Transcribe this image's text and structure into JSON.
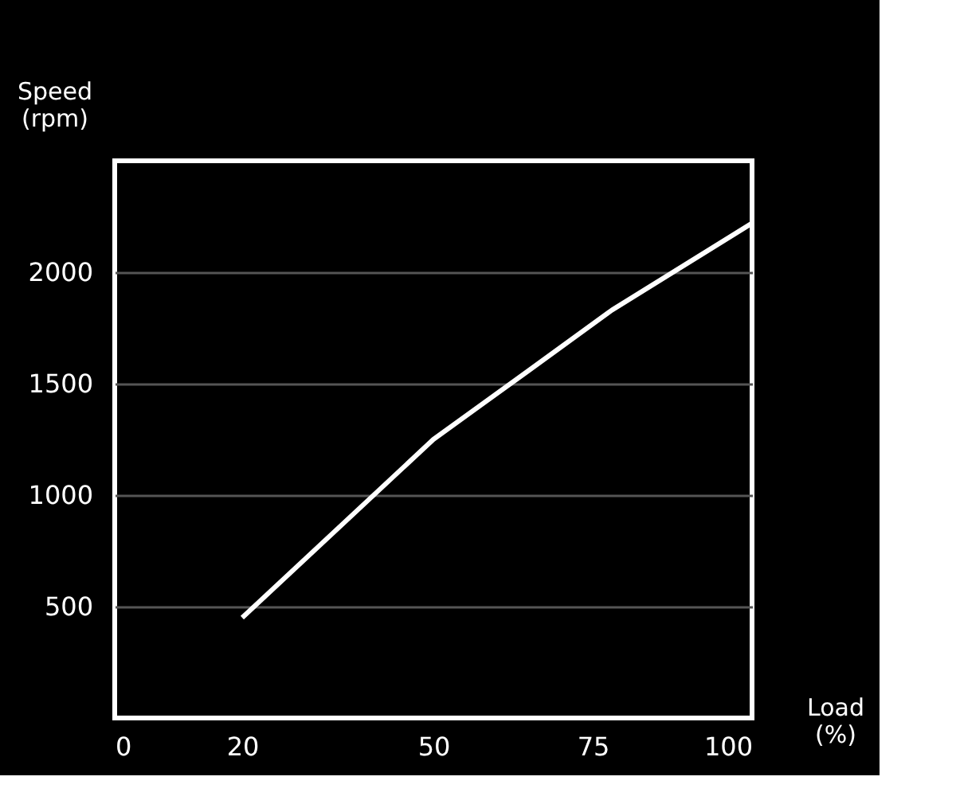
{
  "chart_data": {
    "type": "line",
    "xlabel": "Load (%)",
    "ylabel": "Speed (rpm)",
    "x": [
      20,
      50,
      65,
      78,
      100
    ],
    "series": [
      {
        "color": "#ffffff",
        "values": [
          450,
          1250,
          1560,
          1830,
          2220
        ]
      }
    ],
    "xlim": [
      0,
      100
    ],
    "xticks": [
      0,
      20,
      50,
      75,
      100
    ],
    "ylim": [
      0,
      2500
    ],
    "yticks": [
      500,
      1000,
      1500,
      2000
    ],
    "grid": "y",
    "legend": false,
    "marker": "none",
    "line_style": "solid"
  }
}
